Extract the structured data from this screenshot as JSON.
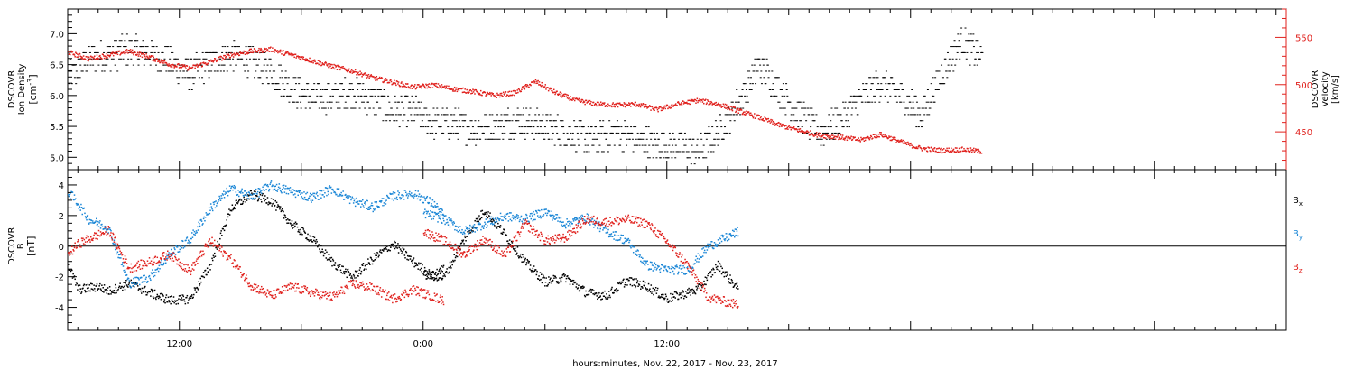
{
  "chart_data": [
    {
      "type": "scatter",
      "panel": "density-velocity",
      "x_range_hours": [
        -17.5,
        42.5
      ],
      "x_tick_labels": [
        "12:00",
        "0:00",
        "12:00"
      ],
      "x_tick_hours": [
        -12,
        0,
        12
      ],
      "left_axis": {
        "label_lines": [
          "DSCOVR",
          "Ion Density"
        ],
        "unit_base": "[cm",
        "unit_sup": "-3",
        "unit_end": "]",
        "ylim": [
          4.8,
          7.4
        ],
        "ticks": [
          5.0,
          5.5,
          6.0,
          6.5,
          7.0
        ],
        "tick_labels": [
          "5.0",
          "5.5",
          "6.0",
          "6.5",
          "7.0"
        ]
      },
      "right_axis": {
        "label_lines": [
          "DSCOVR",
          "Velocity",
          "[km/s]"
        ],
        "ylim": [
          410,
          580
        ],
        "ticks": [
          450,
          500,
          550
        ],
        "tick_labels": [
          "450",
          "500",
          "550"
        ],
        "color": "#e0201c"
      },
      "series": [
        {
          "axis": "left",
          "color": "#000000",
          "points": [
            [
              -17.5,
              6.28
            ],
            [
              -16.5,
              6.6
            ],
            [
              -15.5,
              6.65
            ],
            [
              -14.5,
              6.75
            ],
            [
              -13.5,
              6.7
            ],
            [
              -12.5,
              6.55
            ],
            [
              -11.5,
              6.35
            ],
            [
              -10.5,
              6.55
            ],
            [
              -9.5,
              6.65
            ],
            [
              -8.5,
              6.55
            ],
            [
              -7.5,
              6.4
            ],
            [
              -6.5,
              6.1
            ],
            [
              -5.5,
              5.95
            ],
            [
              -4.5,
              6.0
            ],
            [
              -3.5,
              6.05
            ],
            [
              -2.5,
              5.95
            ],
            [
              -1.5,
              5.75
            ],
            [
              -0.5,
              5.75
            ],
            [
              0.5,
              5.55
            ],
            [
              1.5,
              5.55
            ],
            [
              2.5,
              5.45
            ],
            [
              3.5,
              5.5
            ],
            [
              4.5,
              5.6
            ],
            [
              5.5,
              5.55
            ],
            [
              6.5,
              5.45
            ],
            [
              7.5,
              5.35
            ],
            [
              8.5,
              5.3
            ],
            [
              9.5,
              5.4
            ],
            [
              10.5,
              5.3
            ],
            [
              11.5,
              5.2
            ],
            [
              12.5,
              5.2
            ],
            [
              13.5,
              5.1
            ],
            [
              14.5,
              5.4
            ],
            [
              15.5,
              5.9
            ],
            [
              16.5,
              6.5
            ],
            [
              17.5,
              6.1
            ],
            [
              18.5,
              5.7
            ],
            [
              19.5,
              5.4
            ],
            [
              20.5,
              5.6
            ],
            [
              21.5,
              5.95
            ],
            [
              22.5,
              6.2
            ],
            [
              23.5,
              6.0
            ],
            [
              24.5,
              5.7
            ],
            [
              25.5,
              6.35
            ],
            [
              26.5,
              6.9
            ],
            [
              27.5,
              6.6
            ]
          ]
        },
        {
          "axis": "right",
          "color": "#e0201c",
          "points": [
            [
              -17.5,
              535
            ],
            [
              -16.5,
              528
            ],
            [
              -15.5,
              532
            ],
            [
              -14.5,
              536
            ],
            [
              -13.5,
              530
            ],
            [
              -12.5,
              522
            ],
            [
              -11.5,
              518
            ],
            [
              -10.5,
              525
            ],
            [
              -9.5,
              532
            ],
            [
              -8.5,
              536
            ],
            [
              -7.5,
              538
            ],
            [
              -6.5,
              532
            ],
            [
              -5.5,
              526
            ],
            [
              -4.5,
              520
            ],
            [
              -3.5,
              515
            ],
            [
              -2.5,
              508
            ],
            [
              -1.5,
              503
            ],
            [
              -0.5,
              498
            ],
            [
              0.5,
              500
            ],
            [
              1.5,
              496
            ],
            [
              2.5,
              493
            ],
            [
              3.5,
              489
            ],
            [
              4.5,
              492
            ],
            [
              5.5,
              504
            ],
            [
              6.5,
              492
            ],
            [
              7.5,
              484
            ],
            [
              8.5,
              480
            ],
            [
              9.5,
              479
            ],
            [
              10.5,
              480
            ],
            [
              11.5,
              474
            ],
            [
              12.5,
              480
            ],
            [
              13.5,
              484
            ],
            [
              14.5,
              480
            ],
            [
              15.5,
              473
            ],
            [
              16.5,
              466
            ],
            [
              17.5,
              458
            ],
            [
              18.5,
              452
            ],
            [
              19.5,
              447
            ],
            [
              20.5,
              445
            ],
            [
              21.5,
              442
            ],
            [
              22.5,
              448
            ],
            [
              23.5,
              440
            ],
            [
              24.5,
              433
            ],
            [
              25.5,
              431
            ],
            [
              26.5,
              432
            ],
            [
              27.5,
              430
            ]
          ]
        }
      ]
    },
    {
      "type": "scatter",
      "panel": "magnetic-field",
      "x_range_hours": [
        -17.5,
        42.5
      ],
      "left_axis": {
        "label_lines": [
          "DSCOVR",
          "B"
        ],
        "unit": "[nT]",
        "ylim": [
          -5.5,
          5.0
        ],
        "ticks": [
          -4,
          -2,
          0,
          2,
          4
        ],
        "tick_labels": [
          "-4",
          "-2",
          "0",
          "2",
          "4"
        ]
      },
      "zero_line": true,
      "legend": [
        {
          "base": "B",
          "sub": "x",
          "color": "#000000"
        },
        {
          "base": "B",
          "sub": "y",
          "color": "#1a86d6"
        },
        {
          "base": "B",
          "sub": "z",
          "color": "#e0201c"
        }
      ],
      "series": [
        {
          "name": "Bx",
          "color": "#000000",
          "segments": [
            [
              [
                -17.5,
                -1.2
              ],
              [
                -17.0,
                -2.8
              ],
              [
                -16.0,
                -2.6
              ],
              [
                -15.5,
                -2.9
              ],
              [
                -14.5,
                -2.4
              ],
              [
                -13.5,
                -3.0
              ],
              [
                -12.5,
                -3.5
              ],
              [
                -11.5,
                -3.4
              ],
              [
                -10.5,
                -1.2
              ],
              [
                -9.5,
                2.5
              ],
              [
                -8.5,
                3.4
              ],
              [
                -7.5,
                3.0
              ],
              [
                -6.5,
                1.5
              ],
              [
                -5.5,
                0.5
              ],
              [
                -4.5,
                -1.0
              ],
              [
                -3.5,
                -2.0
              ],
              [
                -2.5,
                -0.8
              ],
              [
                -1.5,
                0.2
              ],
              [
                -0.5,
                -1.0
              ],
              [
                0.5,
                -2.0
              ],
              [
                1.0,
                -1.2
              ]
            ],
            [
              [
                0.0,
                -1.8
              ],
              [
                1.0,
                -2.0
              ],
              [
                2.0,
                0.5
              ],
              [
                3.0,
                2.4
              ],
              [
                4.0,
                0.8
              ],
              [
                5.0,
                -1.0
              ],
              [
                6.0,
                -2.3
              ],
              [
                7.0,
                -2.0
              ],
              [
                8.0,
                -3.0
              ],
              [
                9.0,
                -3.2
              ],
              [
                10.0,
                -2.2
              ],
              [
                11.0,
                -2.6
              ],
              [
                12.0,
                -3.4
              ],
              [
                13.5,
                -2.8
              ],
              [
                14.5,
                -1.2
              ],
              [
                15.5,
                -2.8
              ]
            ]
          ]
        },
        {
          "name": "By",
          "color": "#1a86d6",
          "segments": [
            [
              [
                -17.5,
                3.6
              ],
              [
                -17.0,
                2.8
              ],
              [
                -16.5,
                1.8
              ],
              [
                -15.5,
                1.2
              ],
              [
                -14.5,
                -2.4
              ],
              [
                -13.5,
                -2.0
              ],
              [
                -12.5,
                -0.5
              ],
              [
                -11.5,
                0.5
              ],
              [
                -10.5,
                2.5
              ],
              [
                -9.5,
                3.8
              ],
              [
                -8.5,
                3.3
              ],
              [
                -7.5,
                4.0
              ],
              [
                -6.5,
                3.6
              ],
              [
                -5.5,
                3.2
              ],
              [
                -4.5,
                3.8
              ],
              [
                -3.5,
                3.0
              ],
              [
                -2.5,
                2.6
              ],
              [
                -1.5,
                3.3
              ],
              [
                -0.5,
                3.5
              ],
              [
                0.5,
                2.8
              ],
              [
                1.0,
                2.0
              ]
            ],
            [
              [
                0.0,
                2.2
              ],
              [
                1.0,
                1.8
              ],
              [
                2.0,
                1.0
              ],
              [
                3.0,
                1.5
              ],
              [
                4.0,
                2.0
              ],
              [
                5.0,
                1.8
              ],
              [
                6.0,
                2.3
              ],
              [
                7.0,
                1.5
              ],
              [
                8.0,
                1.9
              ],
              [
                9.0,
                1.0
              ],
              [
                10.0,
                0.4
              ],
              [
                11.0,
                -1.2
              ],
              [
                12.0,
                -1.5
              ],
              [
                13.0,
                -1.5
              ],
              [
                14.0,
                0.0
              ],
              [
                15.5,
                1.0
              ]
            ]
          ]
        },
        {
          "name": "Bz",
          "color": "#e0201c",
          "segments": [
            [
              [
                -17.5,
                -0.5
              ],
              [
                -17.0,
                0.2
              ],
              [
                -16.0,
                0.8
              ],
              [
                -15.5,
                1.1
              ],
              [
                -14.5,
                -1.4
              ],
              [
                -13.5,
                -1.0
              ],
              [
                -12.5,
                -0.5
              ],
              [
                -11.5,
                -1.6
              ],
              [
                -10.5,
                0.4
              ],
              [
                -9.5,
                -0.8
              ],
              [
                -8.5,
                -2.5
              ],
              [
                -7.5,
                -3.2
              ],
              [
                -6.5,
                -2.6
              ],
              [
                -5.5,
                -3.0
              ],
              [
                -4.5,
                -3.3
              ],
              [
                -3.5,
                -2.4
              ],
              [
                -2.5,
                -2.7
              ],
              [
                -1.5,
                -3.4
              ],
              [
                -0.5,
                -2.8
              ],
              [
                0.5,
                -3.3
              ],
              [
                1.0,
                -3.5
              ]
            ],
            [
              [
                0.0,
                1.0
              ],
              [
                1.0,
                0.4
              ],
              [
                2.0,
                -0.5
              ],
              [
                3.0,
                0.5
              ],
              [
                4.0,
                -0.6
              ],
              [
                5.0,
                1.5
              ],
              [
                6.0,
                0.4
              ],
              [
                7.0,
                0.6
              ],
              [
                8.0,
                1.8
              ],
              [
                9.0,
                1.6
              ],
              [
                10.0,
                1.8
              ],
              [
                11.0,
                1.5
              ],
              [
                12.0,
                0.3
              ],
              [
                13.0,
                -1.2
              ],
              [
                14.0,
                -3.3
              ],
              [
                15.5,
                -3.8
              ]
            ]
          ]
        }
      ]
    }
  ],
  "x_axis_title": "hours:minutes, Nov. 22, 2017 - Nov. 23, 2017"
}
